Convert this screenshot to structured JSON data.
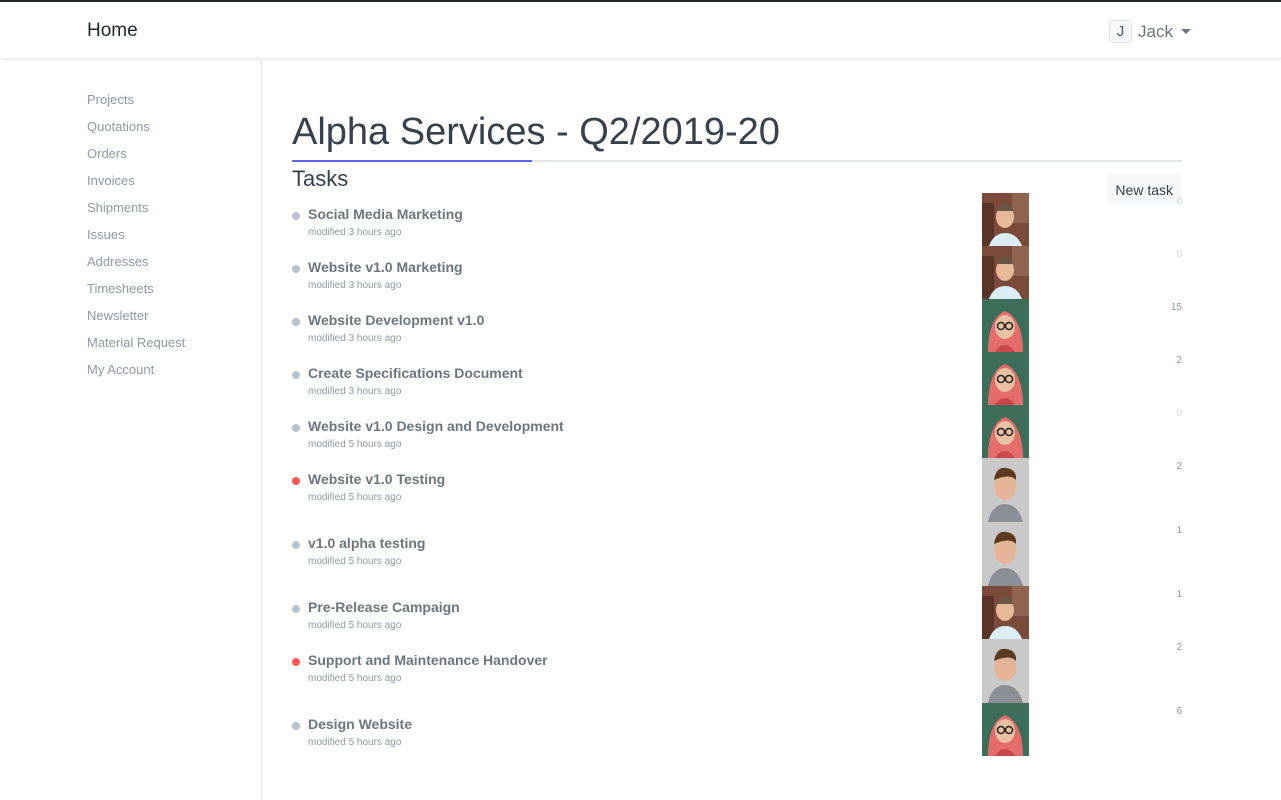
{
  "navbar": {
    "brand": "Home",
    "user_initial": "J",
    "user_name": "Jack"
  },
  "sidebar": {
    "items": [
      "Projects",
      "Quotations",
      "Orders",
      "Invoices",
      "Shipments",
      "Issues",
      "Addresses",
      "Timesheets",
      "Newsletter",
      "Material Request",
      "My Account"
    ]
  },
  "page": {
    "title": "Alpha Services - Q2/2019-20",
    "section": "Tasks",
    "new_task_label": "New task",
    "accent": "#5e64ff"
  },
  "tasks": [
    {
      "title": "Social Media Marketing",
      "modified": "modified 3 hours ago",
      "status": "gray",
      "avatar": "A",
      "count": "0"
    },
    {
      "title": "Website v1.0 Marketing",
      "modified": "modified 3 hours ago",
      "status": "gray",
      "avatar": "A",
      "count": "0"
    },
    {
      "title": "Website Development v1.0",
      "modified": "modified 3 hours ago",
      "status": "gray",
      "avatar": "B",
      "count": "15"
    },
    {
      "title": "Create Specifications Document",
      "modified": "modified 3 hours ago",
      "status": "gray",
      "avatar": "B",
      "count": "2"
    },
    {
      "title": "Website v1.0 Design and Development",
      "modified": "modified 5 hours ago",
      "status": "gray",
      "avatar": "B",
      "count": "0"
    },
    {
      "title": "Website v1.0 Testing",
      "modified": "modified 5 hours ago",
      "status": "red",
      "avatar": "C",
      "count": "2"
    },
    {
      "title": "v1.0 alpha testing",
      "modified": "modified 5 hours ago",
      "status": "gray",
      "avatar": "C",
      "count": "1"
    },
    {
      "title": "Pre-Release Campaign",
      "modified": "modified 5 hours ago",
      "status": "gray",
      "avatar": "A",
      "count": "1"
    },
    {
      "title": "Support and Maintenance Handover",
      "modified": "modified 5 hours ago",
      "status": "red",
      "avatar": "C",
      "count": "2"
    },
    {
      "title": "Design Website",
      "modified": "modified 5 hours ago",
      "status": "gray",
      "avatar": "B",
      "count": "6"
    }
  ]
}
